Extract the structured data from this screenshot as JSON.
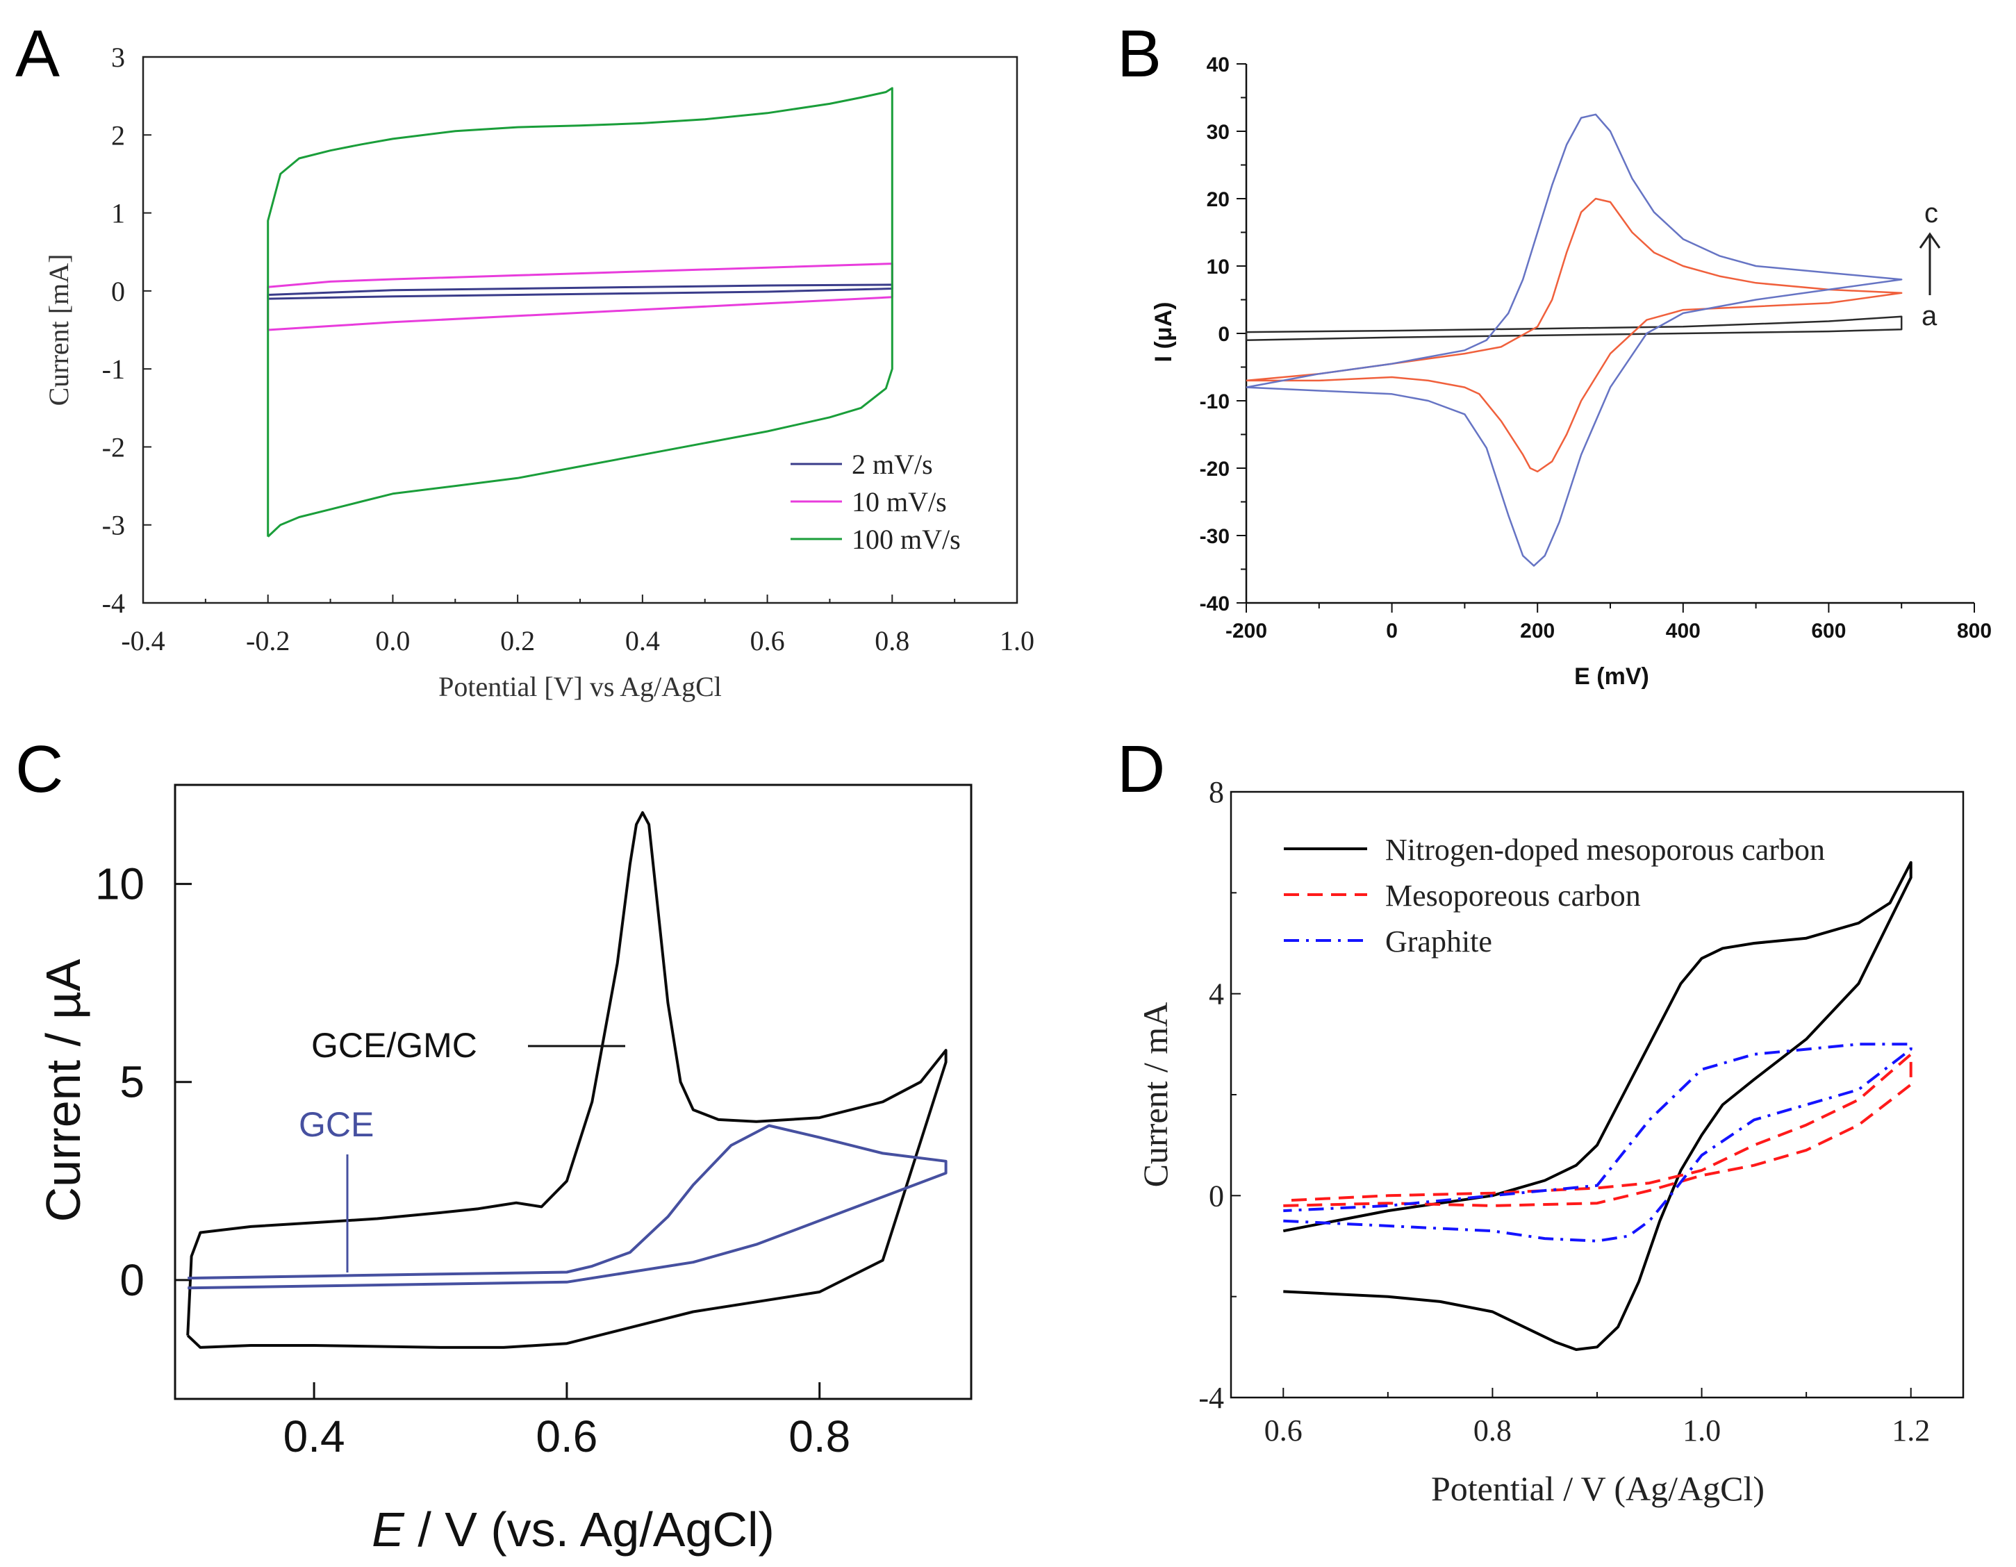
{
  "colors": {
    "a_2": "#3a3c8a",
    "a_10": "#e83cdc",
    "a_100": "#1a9e3a",
    "b_a": "#2b2b2b",
    "b_b": "#f0603c",
    "b_c": "#6674c4",
    "c_gmc": "#0a0a0a",
    "c_gce": "#4650a0",
    "d_n": "#000000",
    "d_meso": "#ff1a1a",
    "d_graph": "#1414ff"
  },
  "chart_data": [
    {
      "panel": "A",
      "type": "line",
      "panel_label": "A",
      "xlabel": "Potential [V] vs Ag/AgCl",
      "ylabel": "Current [mA]",
      "xlim": [
        -0.4,
        1.0
      ],
      "ylim": [
        -4,
        3
      ],
      "xticks": [
        "-0.4",
        "-0.2",
        "0.0",
        "0.2",
        "0.4",
        "0.6",
        "0.8",
        "1.0"
      ],
      "yticks": [
        "3",
        "2",
        "1",
        "0",
        "-1",
        "-2",
        "-3",
        "-4"
      ],
      "legend": [
        "2 mV/s",
        "10 mV/s",
        "100 mV/s"
      ],
      "legend_position": "bottom-right",
      "series": [
        {
          "name": "2 mV/s",
          "color_key": "a_2",
          "x": [
            -0.2,
            0.0,
            0.2,
            0.4,
            0.6,
            0.8,
            0.8,
            0.6,
            0.4,
            0.2,
            0.0,
            -0.2,
            -0.2
          ],
          "y": [
            -0.1,
            -0.07,
            -0.05,
            -0.03,
            -0.01,
            0.03,
            0.08,
            0.07,
            0.05,
            0.03,
            0.01,
            -0.05,
            -0.1
          ]
        },
        {
          "name": "10 mV/s",
          "color_key": "a_10",
          "x": [
            -0.2,
            -0.1,
            0.0,
            0.2,
            0.4,
            0.6,
            0.8,
            0.8,
            0.6,
            0.4,
            0.2,
            0.0,
            -0.1,
            -0.2,
            -0.2
          ],
          "y": [
            -0.5,
            -0.45,
            -0.4,
            -0.32,
            -0.24,
            -0.16,
            -0.08,
            0.35,
            0.3,
            0.25,
            0.2,
            0.15,
            0.12,
            0.05,
            -0.5
          ]
        },
        {
          "name": "100 mV/s",
          "color_key": "a_100",
          "x": [
            -0.2,
            -0.18,
            -0.15,
            -0.1,
            -0.05,
            0.0,
            0.1,
            0.2,
            0.3,
            0.4,
            0.5,
            0.6,
            0.7,
            0.75,
            0.79,
            0.8,
            0.8,
            0.79,
            0.75,
            0.7,
            0.6,
            0.5,
            0.4,
            0.3,
            0.2,
            0.1,
            0.0,
            -0.05,
            -0.1,
            -0.15,
            -0.18,
            -0.2,
            -0.2
          ],
          "y": [
            -3.15,
            -3.0,
            -2.9,
            -2.8,
            -2.7,
            -2.6,
            -2.5,
            -2.4,
            -2.25,
            -2.1,
            -1.95,
            -1.8,
            -1.62,
            -1.5,
            -1.25,
            -1.0,
            2.6,
            2.55,
            2.48,
            2.4,
            2.28,
            2.2,
            2.15,
            2.12,
            2.1,
            2.05,
            1.95,
            1.88,
            1.8,
            1.7,
            1.5,
            0.9,
            -3.15
          ]
        }
      ]
    },
    {
      "panel": "B",
      "type": "line",
      "panel_label": "B",
      "xlabel": "E (mV)",
      "ylabel": "I (μA)",
      "xlim": [
        -200,
        800
      ],
      "ylim": [
        -40,
        40
      ],
      "xticks": [
        "-200",
        "0",
        "200",
        "400",
        "600",
        "800"
      ],
      "yticks": [
        "40",
        "30",
        "20",
        "10",
        "0",
        "-10",
        "-20",
        "-30",
        "-40"
      ],
      "annotation_top": "c",
      "annotation_bottom": "a",
      "series": [
        {
          "name": "a",
          "color_key": "b_a",
          "x": [
            -200,
            0,
            200,
            400,
            600,
            700,
            700,
            600,
            400,
            200,
            0,
            -200,
            -200
          ],
          "y": [
            -1.0,
            -0.6,
            -0.3,
            0.0,
            0.3,
            0.6,
            2.5,
            1.8,
            1.0,
            0.7,
            0.4,
            0.2,
            -1.0
          ]
        },
        {
          "name": "b",
          "color_key": "b_b",
          "x": [
            -200,
            -100,
            0,
            100,
            150,
            200,
            220,
            240,
            260,
            280,
            300,
            330,
            360,
            400,
            450,
            500,
            600,
            700,
            700,
            600,
            500,
            400,
            350,
            300,
            260,
            240,
            220,
            200,
            190,
            180,
            150,
            120,
            100,
            50,
            0,
            -100,
            -200
          ],
          "y": [
            -7,
            -6,
            -4.5,
            -3,
            -2,
            1,
            5,
            12,
            18,
            20,
            19.5,
            15,
            12,
            10,
            8.5,
            7.5,
            6.5,
            6,
            6,
            4.5,
            4,
            3.5,
            2,
            -3,
            -10,
            -15,
            -19,
            -20.5,
            -20,
            -18,
            -13,
            -9,
            -8,
            -7,
            -6.5,
            -7,
            -7
          ]
        },
        {
          "name": "c",
          "color_key": "b_c",
          "x": [
            -200,
            -100,
            0,
            100,
            130,
            160,
            180,
            200,
            220,
            240,
            260,
            280,
            300,
            330,
            360,
            400,
            450,
            500,
            600,
            700,
            700,
            600,
            500,
            400,
            350,
            300,
            260,
            230,
            210,
            195,
            180,
            160,
            130,
            100,
            50,
            0,
            -100,
            -200
          ],
          "y": [
            -8,
            -6,
            -4.5,
            -2.5,
            -1,
            3,
            8,
            15,
            22,
            28,
            32,
            32.5,
            30,
            23,
            18,
            14,
            11.5,
            10,
            9,
            8,
            8,
            6.5,
            5,
            3,
            0,
            -8,
            -18,
            -28,
            -33,
            -34.5,
            -33,
            -27,
            -17,
            -12,
            -10,
            -9,
            -8.5,
            -8
          ]
        }
      ]
    },
    {
      "panel": "C",
      "type": "line",
      "panel_label": "C",
      "xlabel_italic": "E",
      "xlabel": " / V (vs. Ag/AgCl)",
      "ylabel": "Current / µA",
      "xlim": [
        0.29,
        0.92
      ],
      "ylim": [
        -3,
        12.5
      ],
      "xticks": [
        "0.4",
        "0.6",
        "0.8"
      ],
      "yticks": [
        "10",
        "5",
        "0"
      ],
      "label_gmc": "GCE/GMC",
      "label_gce": "GCE",
      "series": [
        {
          "name": "GCE/GMC",
          "color_key": "c_gmc",
          "x": [
            0.3,
            0.303,
            0.31,
            0.35,
            0.4,
            0.45,
            0.5,
            0.53,
            0.55,
            0.56,
            0.58,
            0.6,
            0.62,
            0.64,
            0.65,
            0.655,
            0.66,
            0.665,
            0.67,
            0.68,
            0.69,
            0.7,
            0.72,
            0.75,
            0.8,
            0.85,
            0.88,
            0.9,
            0.9,
            0.85,
            0.8,
            0.7,
            0.65,
            0.6,
            0.55,
            0.5,
            0.4,
            0.35,
            0.31,
            0.3
          ],
          "y": [
            -1.4,
            0.6,
            1.2,
            1.35,
            1.45,
            1.55,
            1.7,
            1.8,
            1.9,
            1.95,
            1.85,
            2.5,
            4.5,
            8.0,
            10.5,
            11.5,
            11.8,
            11.5,
            10.0,
            7.0,
            5.0,
            4.3,
            4.05,
            4.0,
            4.1,
            4.5,
            5.0,
            5.8,
            5.5,
            0.5,
            -0.3,
            -0.8,
            -1.2,
            -1.6,
            -1.7,
            -1.7,
            -1.65,
            -1.65,
            -1.7,
            -1.4
          ]
        },
        {
          "name": "GCE",
          "color_key": "c_gce",
          "x": [
            0.3,
            0.4,
            0.5,
            0.6,
            0.62,
            0.65,
            0.68,
            0.7,
            0.73,
            0.76,
            0.8,
            0.85,
            0.9,
            0.9,
            0.85,
            0.8,
            0.75,
            0.7,
            0.65,
            0.6,
            0.5,
            0.4,
            0.3
          ],
          "y": [
            0.05,
            0.1,
            0.15,
            0.2,
            0.35,
            0.7,
            1.6,
            2.4,
            3.4,
            3.9,
            3.6,
            3.2,
            3.0,
            2.7,
            2.1,
            1.5,
            0.9,
            0.45,
            0.2,
            -0.05,
            -0.1,
            -0.15,
            -0.2
          ]
        }
      ]
    },
    {
      "panel": "D",
      "type": "line",
      "panel_label": "D",
      "xlabel": "Potential / V  (Ag/AgCl)",
      "ylabel": "Current / mA",
      "xlim": [
        0.55,
        1.25
      ],
      "ylim": [
        -4,
        8
      ],
      "xticks": [
        "0.6",
        "0.8",
        "1.0",
        "1.2"
      ],
      "yticks": [
        "8",
        "4",
        "0",
        "-4"
      ],
      "legend": [
        "Nitrogen-doped mesoporous carbon",
        "Mesoporeous carbon",
        "Graphite"
      ],
      "legend_position": "top-left",
      "series": [
        {
          "name": "Nitrogen-doped mesoporous carbon",
          "color_key": "d_n",
          "dash": "solid",
          "x": [
            0.6,
            0.7,
            0.75,
            0.8,
            0.83,
            0.86,
            0.88,
            0.9,
            0.92,
            0.94,
            0.96,
            0.98,
            1.0,
            1.02,
            1.05,
            1.1,
            1.15,
            1.2,
            1.2,
            1.18,
            1.15,
            1.1,
            1.05,
            1.02,
            1.0,
            0.98,
            0.95,
            0.92,
            0.9,
            0.88,
            0.85,
            0.8,
            0.7,
            0.6
          ],
          "y": [
            -1.9,
            -2.0,
            -2.1,
            -2.3,
            -2.6,
            -2.9,
            -3.05,
            -3.0,
            -2.6,
            -1.7,
            -0.5,
            0.5,
            1.2,
            1.8,
            2.3,
            3.1,
            4.2,
            6.3,
            6.6,
            5.8,
            5.4,
            5.1,
            5.0,
            4.9,
            4.7,
            4.2,
            3.0,
            1.8,
            1.0,
            0.6,
            0.3,
            0.0,
            -0.3,
            -0.7
          ]
        },
        {
          "name": "Mesoporeous carbon",
          "color_key": "d_meso",
          "dash": "dashed",
          "x": [
            0.6,
            0.7,
            0.8,
            0.9,
            0.95,
            1.0,
            1.05,
            1.1,
            1.15,
            1.2,
            1.2,
            1.15,
            1.1,
            1.05,
            1.0,
            0.95,
            0.9,
            0.8,
            0.7,
            0.6
          ],
          "y": [
            -0.2,
            -0.15,
            -0.2,
            -0.15,
            0.1,
            0.4,
            0.6,
            0.9,
            1.4,
            2.2,
            2.8,
            1.9,
            1.4,
            1.0,
            0.5,
            0.25,
            0.15,
            0.05,
            0.0,
            -0.1
          ]
        },
        {
          "name": "Graphite",
          "color_key": "d_graph",
          "dash": "dashdot",
          "x": [
            0.6,
            0.7,
            0.8,
            0.85,
            0.9,
            0.93,
            0.95,
            0.97,
            1.0,
            1.05,
            1.1,
            1.15,
            1.2,
            1.2,
            1.15,
            1.1,
            1.05,
            1.0,
            0.95,
            0.9,
            0.8,
            0.7,
            0.6
          ],
          "y": [
            -0.5,
            -0.6,
            -0.7,
            -0.85,
            -0.9,
            -0.8,
            -0.5,
            0.0,
            0.8,
            1.5,
            1.8,
            2.1,
            2.9,
            3.0,
            3.0,
            2.9,
            2.8,
            2.5,
            1.5,
            0.2,
            0.0,
            -0.2,
            -0.3
          ]
        }
      ]
    }
  ]
}
